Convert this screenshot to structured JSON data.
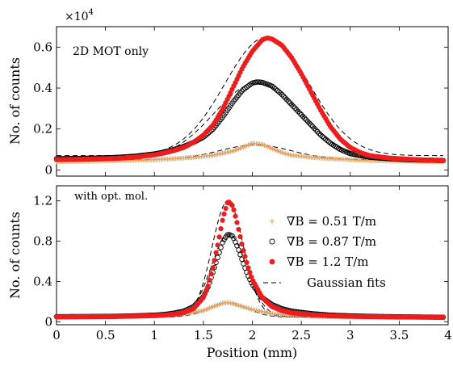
{
  "chart_data": [
    {
      "type": "scatter",
      "panel": "top",
      "annotation": "2D MOT only",
      "multiplier_label": "×10",
      "multiplier_exponent": "4",
      "ylabel": "No. of counts",
      "xlabel": "",
      "xlim": [
        0,
        4
      ],
      "ylim": [
        -0.03,
        0.7
      ],
      "x_ticks": [
        "0",
        "0.5",
        "1",
        "1.5",
        "2",
        "2.5",
        "3",
        "3.5",
        "4"
      ],
      "y_ticks": [
        "0",
        "0.2",
        "0.4",
        "0.6"
      ],
      "y_tick_values": [
        0,
        0.2,
        0.4,
        0.6
      ],
      "grid": false,
      "series": [
        {
          "key": "0.51",
          "marker": "plus",
          "color": "#f5a04b",
          "points": [
            [
              0.0,
              0.041
            ],
            [
              0.2,
              0.042
            ],
            [
              0.4,
              0.043
            ],
            [
              0.6,
              0.045
            ],
            [
              0.8,
              0.047
            ],
            [
              1.0,
              0.05
            ],
            [
              1.2,
              0.055
            ],
            [
              1.4,
              0.062
            ],
            [
              1.6,
              0.072
            ],
            [
              1.8,
              0.092
            ],
            [
              1.9,
              0.11
            ],
            [
              2.0,
              0.13
            ],
            [
              2.1,
              0.125
            ],
            [
              2.2,
              0.105
            ],
            [
              2.3,
              0.085
            ],
            [
              2.4,
              0.072
            ],
            [
              2.6,
              0.062
            ],
            [
              2.8,
              0.055
            ],
            [
              3.0,
              0.05
            ],
            [
              3.2,
              0.046
            ],
            [
              3.4,
              0.044
            ],
            [
              3.6,
              0.042
            ],
            [
              3.8,
              0.041
            ],
            [
              3.95,
              0.04
            ]
          ]
        },
        {
          "key": "0.87",
          "marker": "circle",
          "color": "#000000",
          "points": [
            [
              0.0,
              0.055
            ],
            [
              0.2,
              0.056
            ],
            [
              0.4,
              0.058
            ],
            [
              0.6,
              0.061
            ],
            [
              0.8,
              0.067
            ],
            [
              1.0,
              0.078
            ],
            [
              1.1,
              0.087
            ],
            [
              1.2,
              0.1
            ],
            [
              1.3,
              0.115
            ],
            [
              1.4,
              0.135
            ],
            [
              1.5,
              0.16
            ],
            [
              1.6,
              0.2
            ],
            [
              1.7,
              0.26
            ],
            [
              1.8,
              0.33
            ],
            [
              1.9,
              0.39
            ],
            [
              2.0,
              0.425
            ],
            [
              2.05,
              0.43
            ],
            [
              2.1,
              0.428
            ],
            [
              2.2,
              0.41
            ],
            [
              2.3,
              0.37
            ],
            [
              2.4,
              0.32
            ],
            [
              2.5,
              0.27
            ],
            [
              2.6,
              0.22
            ],
            [
              2.7,
              0.17
            ],
            [
              2.8,
              0.13
            ],
            [
              2.9,
              0.1
            ],
            [
              3.0,
              0.08
            ],
            [
              3.2,
              0.062
            ],
            [
              3.4,
              0.055
            ],
            [
              3.6,
              0.05
            ],
            [
              3.8,
              0.048
            ],
            [
              3.95,
              0.046
            ]
          ]
        },
        {
          "key": "1.2",
          "marker": "dot",
          "color": "#ee1c1c",
          "points": [
            [
              0.0,
              0.05
            ],
            [
              0.2,
              0.051
            ],
            [
              0.4,
              0.053
            ],
            [
              0.6,
              0.056
            ],
            [
              0.8,
              0.062
            ],
            [
              1.0,
              0.074
            ],
            [
              1.1,
              0.083
            ],
            [
              1.2,
              0.095
            ],
            [
              1.3,
              0.11
            ],
            [
              1.4,
              0.135
            ],
            [
              1.5,
              0.17
            ],
            [
              1.6,
              0.22
            ],
            [
              1.7,
              0.3
            ],
            [
              1.8,
              0.4
            ],
            [
              1.9,
              0.5
            ],
            [
              2.0,
              0.58
            ],
            [
              2.1,
              0.635
            ],
            [
              2.15,
              0.645
            ],
            [
              2.2,
              0.64
            ],
            [
              2.3,
              0.61
            ],
            [
              2.4,
              0.55
            ],
            [
              2.5,
              0.47
            ],
            [
              2.6,
              0.38
            ],
            [
              2.7,
              0.29
            ],
            [
              2.8,
              0.21
            ],
            [
              2.9,
              0.15
            ],
            [
              3.0,
              0.11
            ],
            [
              3.1,
              0.085
            ],
            [
              3.2,
              0.07
            ],
            [
              3.4,
              0.058
            ],
            [
              3.6,
              0.052
            ],
            [
              3.8,
              0.048
            ],
            [
              3.95,
              0.045
            ]
          ]
        }
      ],
      "fits": [
        {
          "key": "0.51",
          "offset": 0.05,
          "amp": 0.072,
          "mu": 2.03,
          "sigma": 0.37
        },
        {
          "key": "0.87",
          "offset": 0.05,
          "amp": 0.375,
          "mu": 2.05,
          "sigma": 0.44
        },
        {
          "key": "1.2",
          "offset": 0.07,
          "amp": 0.58,
          "mu": 2.15,
          "sigma": 0.43
        }
      ]
    },
    {
      "type": "scatter",
      "panel": "bottom",
      "annotation": "with opt. mol.",
      "ylabel": "No. of counts",
      "xlabel": "Position (mm)",
      "xlim": [
        0,
        4
      ],
      "ylim": [
        -0.03,
        1.35
      ],
      "x_ticks": [
        "0",
        "0.5",
        "1",
        "1.5",
        "2",
        "2.5",
        "3",
        "3.5",
        "4"
      ],
      "y_ticks": [
        "0",
        "0.4",
        "0.8",
        "1.2"
      ],
      "y_tick_values": [
        0,
        0.4,
        0.8,
        1.2
      ],
      "grid": false,
      "legend_position": "top-right",
      "series": [
        {
          "key": "0.51",
          "marker": "plus",
          "color": "#f5a04b",
          "points": [
            [
              0.0,
              0.045
            ],
            [
              0.2,
              0.046
            ],
            [
              0.4,
              0.048
            ],
            [
              0.6,
              0.05
            ],
            [
              0.8,
              0.053
            ],
            [
              1.0,
              0.058
            ],
            [
              1.2,
              0.068
            ],
            [
              1.4,
              0.09
            ],
            [
              1.5,
              0.11
            ],
            [
              1.6,
              0.15
            ],
            [
              1.7,
              0.185
            ],
            [
              1.75,
              0.19
            ],
            [
              1.8,
              0.18
            ],
            [
              1.9,
              0.15
            ],
            [
              2.0,
              0.12
            ],
            [
              2.2,
              0.08
            ],
            [
              2.4,
              0.062
            ],
            [
              2.6,
              0.054
            ],
            [
              2.8,
              0.05
            ],
            [
              3.0,
              0.048
            ],
            [
              3.2,
              0.046
            ],
            [
              3.4,
              0.045
            ],
            [
              3.6,
              0.044
            ],
            [
              3.8,
              0.043
            ],
            [
              3.95,
              0.042
            ]
          ]
        },
        {
          "key": "0.87",
          "marker": "circle",
          "color": "#000000",
          "points": [
            [
              0.0,
              0.05
            ],
            [
              0.2,
              0.051
            ],
            [
              0.4,
              0.052
            ],
            [
              0.6,
              0.054
            ],
            [
              0.8,
              0.058
            ],
            [
              1.0,
              0.065
            ],
            [
              1.1,
              0.072
            ],
            [
              1.2,
              0.085
            ],
            [
              1.3,
              0.105
            ],
            [
              1.4,
              0.15
            ],
            [
              1.5,
              0.25
            ],
            [
              1.55,
              0.35
            ],
            [
              1.6,
              0.5
            ],
            [
              1.65,
              0.65
            ],
            [
              1.7,
              0.8
            ],
            [
              1.75,
              0.87
            ],
            [
              1.8,
              0.85
            ],
            [
              1.85,
              0.74
            ],
            [
              1.9,
              0.6
            ],
            [
              1.95,
              0.47
            ],
            [
              2.0,
              0.37
            ],
            [
              2.1,
              0.24
            ],
            [
              2.2,
              0.17
            ],
            [
              2.3,
              0.13
            ],
            [
              2.4,
              0.105
            ],
            [
              2.6,
              0.08
            ],
            [
              2.8,
              0.065
            ],
            [
              3.0,
              0.058
            ],
            [
              3.2,
              0.053
            ],
            [
              3.4,
              0.05
            ],
            [
              3.6,
              0.048
            ],
            [
              3.8,
              0.046
            ],
            [
              3.95,
              0.045
            ]
          ]
        },
        {
          "key": "1.2",
          "marker": "dot",
          "color": "#ee1c1c",
          "points": [
            [
              0.0,
              0.048
            ],
            [
              0.2,
              0.049
            ],
            [
              0.4,
              0.05
            ],
            [
              0.6,
              0.052
            ],
            [
              0.8,
              0.055
            ],
            [
              1.0,
              0.06
            ],
            [
              1.2,
              0.072
            ],
            [
              1.3,
              0.09
            ],
            [
              1.4,
              0.13
            ],
            [
              1.5,
              0.24
            ],
            [
              1.55,
              0.36
            ],
            [
              1.6,
              0.55
            ],
            [
              1.65,
              0.78
            ],
            [
              1.7,
              1.03
            ],
            [
              1.75,
              1.2
            ],
            [
              1.8,
              1.15
            ],
            [
              1.85,
              0.96
            ],
            [
              1.9,
              0.74
            ],
            [
              1.95,
              0.56
            ],
            [
              2.0,
              0.42
            ],
            [
              2.1,
              0.24
            ],
            [
              2.2,
              0.15
            ],
            [
              2.3,
              0.11
            ],
            [
              2.4,
              0.088
            ],
            [
              2.6,
              0.068
            ],
            [
              2.8,
              0.058
            ],
            [
              3.0,
              0.053
            ],
            [
              3.2,
              0.05
            ],
            [
              3.4,
              0.048
            ],
            [
              3.6,
              0.047
            ],
            [
              3.8,
              0.046
            ],
            [
              3.95,
              0.045
            ]
          ]
        }
      ],
      "fits": [
        {
          "key": "0.51",
          "offset": 0.045,
          "amp": 0.145,
          "mu": 1.75,
          "sigma": 0.2
        },
        {
          "key": "0.87",
          "offset": 0.05,
          "amp": 0.82,
          "mu": 1.76,
          "sigma": 0.18
        },
        {
          "key": "1.2",
          "offset": 0.05,
          "amp": 1.15,
          "mu": 1.75,
          "sigma": 0.16
        }
      ]
    }
  ],
  "legend": {
    "entries": [
      {
        "key": "0.51",
        "marker": "plus",
        "color": "#f5a04b",
        "label": "∇B = 0.51 T/m"
      },
      {
        "key": "0.87",
        "marker": "circle",
        "color": "#000000",
        "label": "∇B = 0.87 T/m"
      },
      {
        "key": "1.2",
        "marker": "dot",
        "color": "#ee1c1c",
        "label": "∇B = 1.2 T/m"
      },
      {
        "key": "fit",
        "marker": "dashed-line",
        "color": "#000000",
        "label": "Gaussian fits"
      }
    ]
  },
  "colors": {
    "orange": "#f5a04b",
    "black": "#000000",
    "red": "#ee1c1c"
  }
}
